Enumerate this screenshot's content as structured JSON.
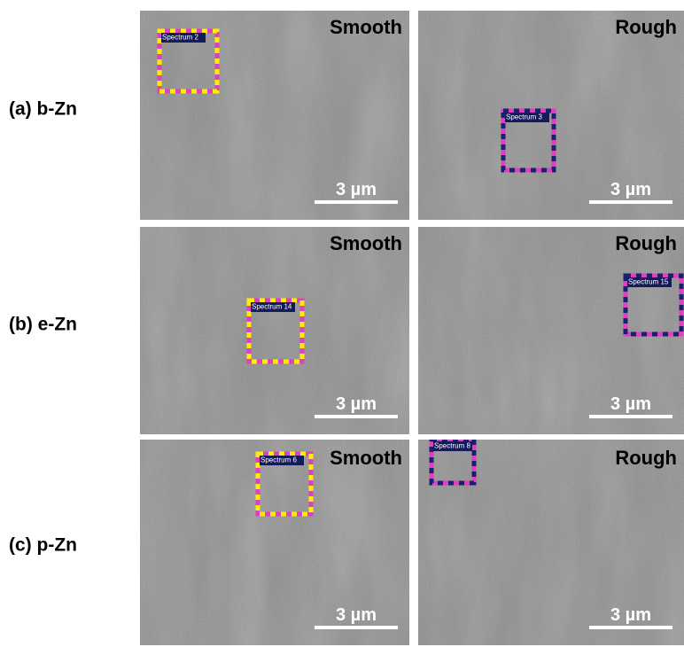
{
  "rows": [
    {
      "label": "(a) b-Zn",
      "panels": [
        {
          "condition": "Smooth",
          "spectrum": "Spectrum 2",
          "scale_bar": "3 µm"
        },
        {
          "condition": "Rough",
          "spectrum": "Spectrum 3",
          "scale_bar": "3 µm"
        }
      ]
    },
    {
      "label": "(b) e-Zn",
      "panels": [
        {
          "condition": "Smooth",
          "spectrum": "Spectrum 14",
          "scale_bar": "3 µm"
        },
        {
          "condition": "Rough",
          "spectrum": "Spectrum 15",
          "scale_bar": "3 µm"
        }
      ]
    },
    {
      "label": "(c) p-Zn",
      "panels": [
        {
          "condition": "Smooth",
          "spectrum": "Spectrum 6",
          "scale_bar": "3 µm"
        },
        {
          "condition": "Rough",
          "spectrum": "Spectrum 8",
          "scale_bar": "3 µm"
        }
      ]
    }
  ]
}
